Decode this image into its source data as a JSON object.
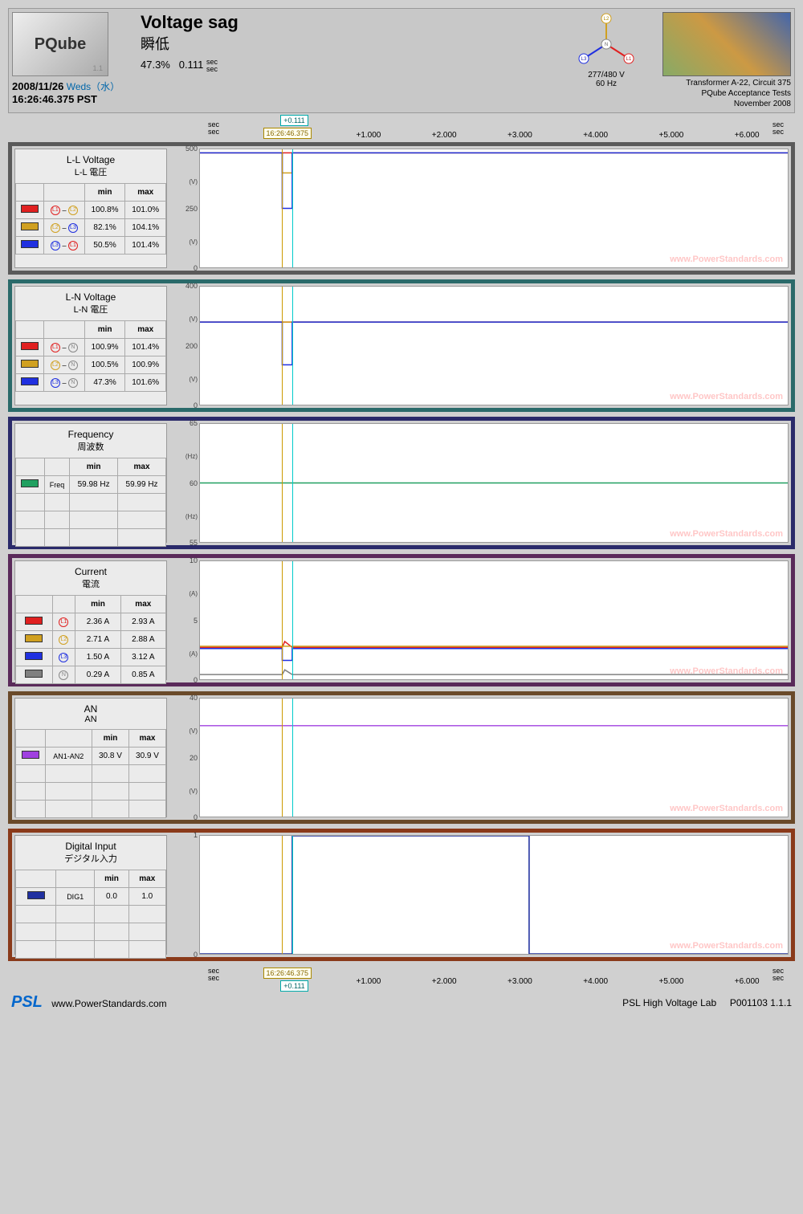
{
  "header": {
    "logo_text": "PQube",
    "date": "2008/11/26",
    "day": "Weds（水）",
    "time": "16:26:46.375",
    "tz": "PST",
    "title_en": "Voltage sag",
    "title_jp": "瞬低",
    "pct": "47.3%",
    "dur": "0.111",
    "dur_unit": "sec\nsec",
    "phasor": {
      "volts": "277/480 V",
      "hz": "60 Hz"
    },
    "meta1": "Transformer A-22, Circuit 375",
    "meta2": "PQube Acceptance Tests",
    "meta3": "November 2008"
  },
  "time_axis": {
    "cursor_offset": "+0.111",
    "cursor_time": "16:26:46.375",
    "cursor_x1_pct": 14,
    "cursor_x2_pct": 15.7,
    "ticks": [
      {
        "label": "+1.000",
        "pct": 26
      },
      {
        "label": "+2.000",
        "pct": 39
      },
      {
        "label": "+3.000",
        "pct": 52
      },
      {
        "label": "+4.000",
        "pct": 65
      },
      {
        "label": "+5.000",
        "pct": 78
      },
      {
        "label": "+6.000",
        "pct": 91
      }
    ],
    "sec_lbl": "sec\nsec"
  },
  "panels": [
    {
      "frame_color": "#5a5a5a",
      "title_en": "L-L Voltage",
      "title_jp": "L-L 電圧",
      "cols": [
        "min",
        "max"
      ],
      "unit": "(V)",
      "ymin": 0,
      "ymax": 500,
      "yticks": [
        0,
        250,
        500
      ],
      "rows": [
        {
          "color": "#e02020",
          "label": "L1 – L2",
          "min": "100.8%",
          "max": "101.0%",
          "y": 485
        },
        {
          "color": "#d0a020",
          "label": "L2 – L3",
          "min": "82.1%",
          "max": "104.1%",
          "y": 485,
          "dip": 400
        },
        {
          "color": "#2030e0",
          "label": "L3 – L1",
          "min": "50.5%",
          "max": "101.4%",
          "y": 485,
          "dip": 250
        }
      ]
    },
    {
      "frame_color": "#2a6a6a",
      "title_en": "L-N Voltage",
      "title_jp": "L-N 電圧",
      "cols": [
        "min",
        "max"
      ],
      "unit": "(V)",
      "ymin": 0,
      "ymax": 400,
      "yticks": [
        0,
        200,
        400
      ],
      "rows": [
        {
          "color": "#e02020",
          "label": "L1 – N",
          "min": "100.9%",
          "max": "101.4%",
          "y": 280
        },
        {
          "color": "#d0a020",
          "label": "L2 – N",
          "min": "100.5%",
          "max": "100.9%",
          "y": 280
        },
        {
          "color": "#2030e0",
          "label": "L3 – N",
          "min": "47.3%",
          "max": "101.6%",
          "y": 280,
          "dip": 135
        }
      ]
    },
    {
      "frame_color": "#2a2a6a",
      "title_en": "Frequency",
      "title_jp": "周波数",
      "cols": [
        "min",
        "max"
      ],
      "unit": "(Hz)",
      "ymin": 55,
      "ymax": 65,
      "yticks": [
        55,
        60,
        65
      ],
      "rows": [
        {
          "color": "#20a060",
          "label": "Freq",
          "min": "59.98 Hz",
          "max": "59.99 Hz",
          "y": 60
        }
      ],
      "blank_rows": 3
    },
    {
      "frame_color": "#5a2a5a",
      "title_en": "Current",
      "title_jp": "電流",
      "cols": [
        "min",
        "max"
      ],
      "unit": "(A)",
      "ymin": 0,
      "ymax": 10,
      "yticks": [
        0,
        5,
        10
      ],
      "rows": [
        {
          "color": "#e02020",
          "label": "L1",
          "min": "2.36 A",
          "max": "2.93 A",
          "y": 2.7,
          "spike": 3.2
        },
        {
          "color": "#d0a020",
          "label": "L2",
          "min": "2.71 A",
          "max": "2.88 A",
          "y": 2.8
        },
        {
          "color": "#2030e0",
          "label": "L3",
          "min": "1.50 A",
          "max": "3.12 A",
          "y": 2.6,
          "dip": 1.6,
          "spike": 3.1
        },
        {
          "color": "#808080",
          "label": "N",
          "min": "0.29 A",
          "max": "0.85 A",
          "y": 0.4,
          "spike": 0.8
        }
      ]
    },
    {
      "frame_color": "#6a4a2a",
      "title_en": "AN",
      "title_jp": "AN",
      "cols": [
        "min",
        "max"
      ],
      "unit": "(V)",
      "ymin": 0,
      "ymax": 40,
      "yticks": [
        0,
        20,
        40
      ],
      "rows": [
        {
          "color": "#a040e0",
          "label": "AN1-AN2",
          "min": "30.8 V",
          "max": "30.9 V",
          "y": 30.8
        }
      ],
      "blank_rows": 3
    },
    {
      "frame_color": "#8a3a1a",
      "title_en": "Digital Input",
      "title_jp": "デジタル入力",
      "cols": [
        "min",
        "max"
      ],
      "unit": "",
      "ymin": 0,
      "ymax": 1,
      "yticks": [
        0,
        1
      ],
      "rows": [
        {
          "color": "#2030a0",
          "label": "DIG1",
          "min": "0.0",
          "max": "1.0",
          "digital": true
        }
      ],
      "blank_rows": 3
    }
  ],
  "watermark": "www.PowerStandards.com",
  "footer": {
    "psl": "PSL",
    "url": "www.PowerStandards.com",
    "lab": "PSL High Voltage Lab",
    "id": "P001103  1.1.1"
  }
}
